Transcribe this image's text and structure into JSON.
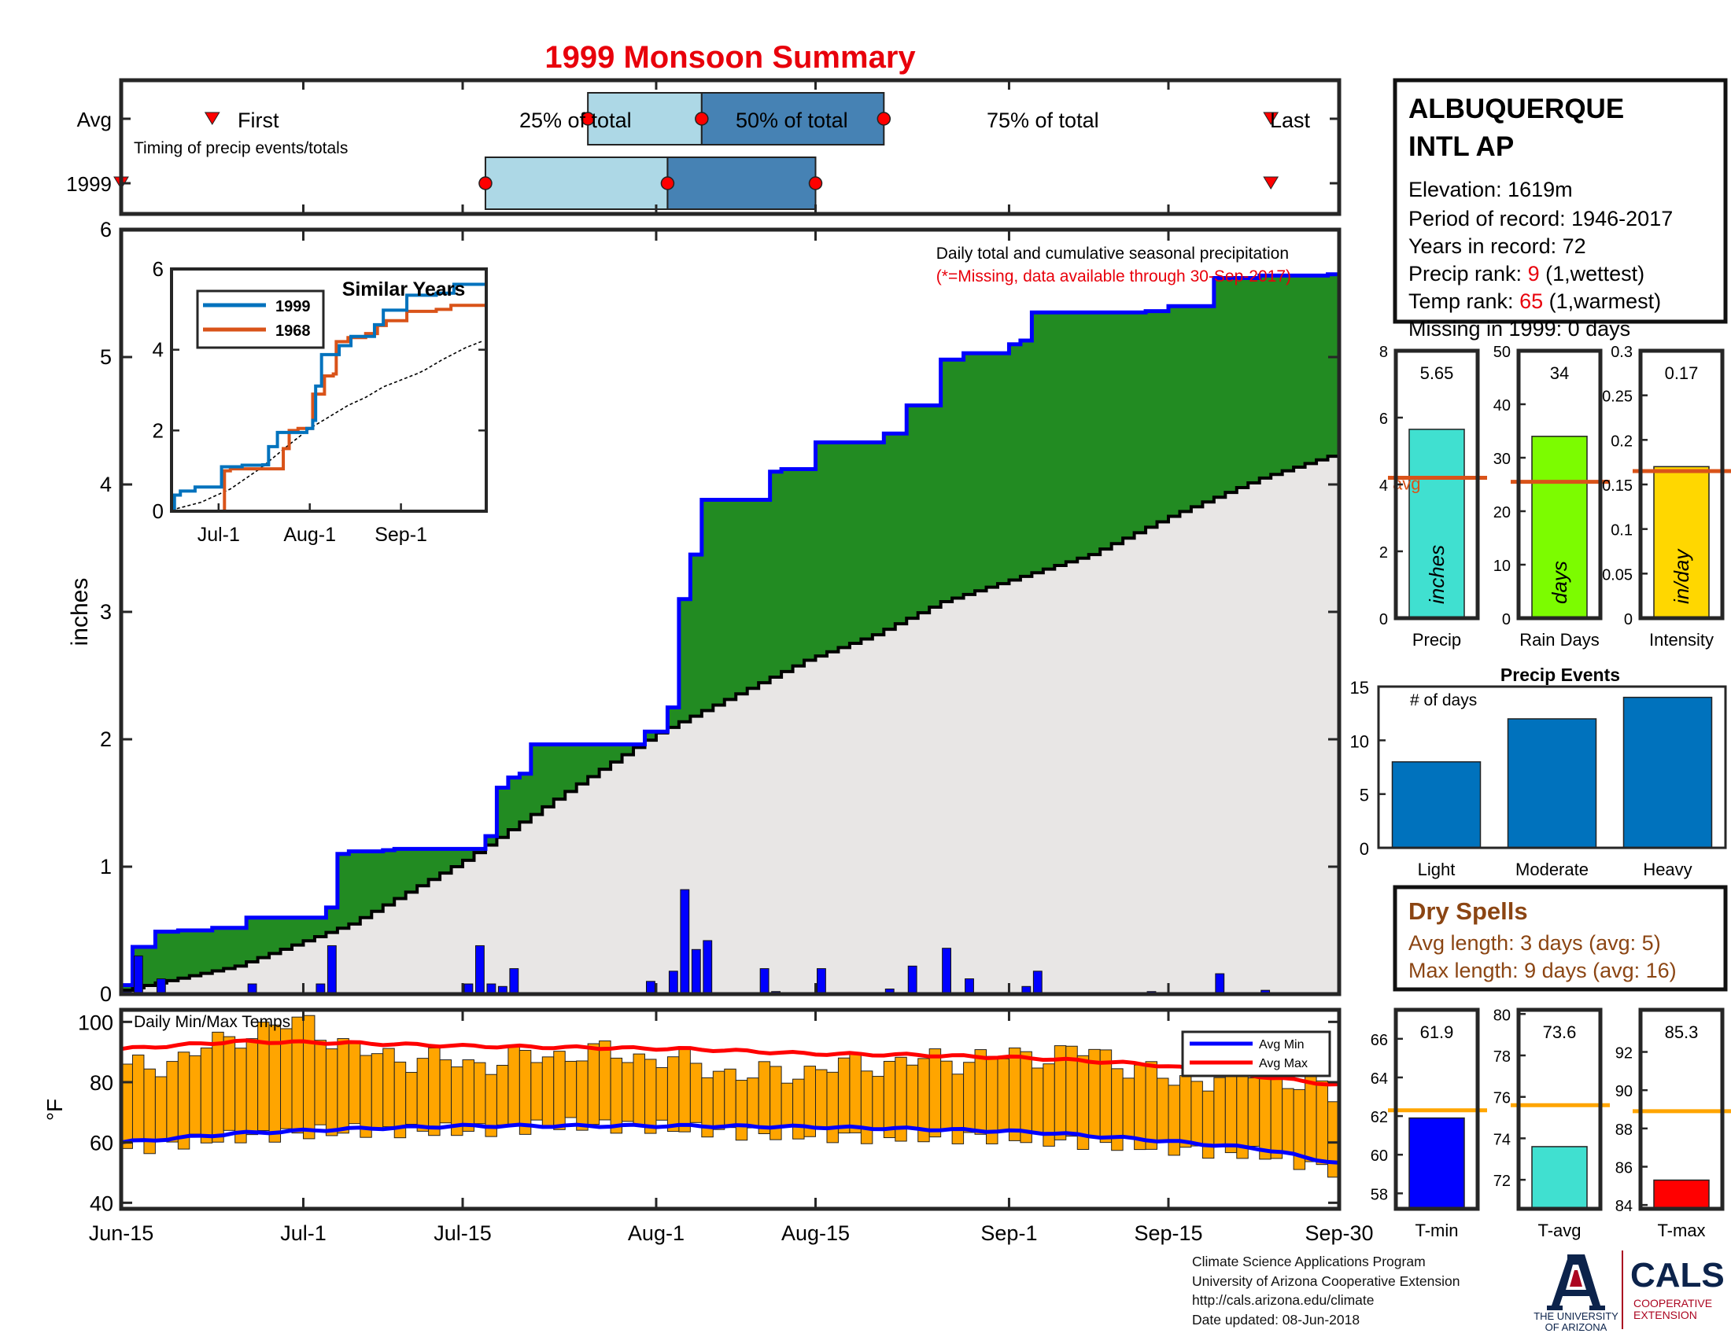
{
  "title": "1999 Monsoon Summary",
  "timing": {
    "labels": {
      "avg": "Avg",
      "year": "1999",
      "first": "First",
      "last": "Last",
      "p25": "25% of total",
      "p50": "50% of total",
      "p75": "75% of total",
      "subtitle": "Timing of precip events/totals"
    },
    "avg": {
      "first": "Jun-23",
      "p25": "Jul-26",
      "p50": "Aug-5",
      "p75": "Aug-21",
      "last": "Sep-24"
    },
    "year": {
      "first": "Jun-15",
      "p25": "Jul-17",
      "p50": "Aug-2",
      "p75": "Aug-15",
      "last": "Sep-24"
    },
    "colors": {
      "light": "#add8e6",
      "dark": "#4682b4",
      "marker": "#ff0000"
    }
  },
  "station": {
    "name_line1": "ALBUQUERQUE",
    "name_line2": "INTL AP",
    "elevation": "Elevation: 1619m",
    "period": "Period of record: 1946-2017",
    "years": "Years in record: 72",
    "precip_rank_label": "Precip rank: ",
    "precip_rank_value": "9",
    "precip_rank_note": " (1,wettest)",
    "temp_rank_label": "Temp rank: ",
    "temp_rank_value": "65",
    "temp_rank_note": " (1,warmest)",
    "missing": "Missing in 1999: 0 days"
  },
  "main_notes": {
    "line1": "Daily total and cumulative seasonal precipitation",
    "line2": "(*=Missing, data available through 30-Sep-2017)"
  },
  "footer": {
    "line1": "Climate Science Applications Program",
    "line2": "University of Arizona Cooperative Extension",
    "line3": "http://cals.arizona.edu/climate",
    "line4": " Date updated: 08-Jun-2018"
  },
  "logos": {
    "ua_letter": "A",
    "ua_line1": "THE UNIVERSITY",
    "ua_line2": "OF ARIZONA",
    "cals": "CALS",
    "cals_line1": "COOPERATIVE",
    "cals_line2": "EXTENSION"
  },
  "dry_spells": {
    "title": "Dry Spells",
    "avg_length": "Avg length: 3 days (avg: 5)",
    "max_length": "Max length: 9 days (avg: 16)",
    "color": "#8b4513"
  },
  "chart_data": [
    {
      "id": "cumulative_precip",
      "type": "area",
      "ylabel": "inches",
      "ylim": [
        0,
        6
      ],
      "yticks": [
        0,
        1,
        2,
        3,
        4,
        5,
        6
      ],
      "x_start": "Jun-15",
      "x_end": "Sep-30",
      "days": 108,
      "xtick_labels": [
        "Jun-15",
        "Jul-1",
        "Jul-15",
        "Aug-1",
        "Aug-15",
        "Sep-1",
        "Sep-15",
        "Sep-30"
      ],
      "xtick_days": [
        0,
        16,
        30,
        47,
        61,
        78,
        92,
        107
      ],
      "series": [
        {
          "name": "1999 cumulative",
          "color": "#0000ff",
          "fill": "#228b22",
          "steps": [
            [
              0,
              0.07
            ],
            [
              1,
              0.37
            ],
            [
              3,
              0.49
            ],
            [
              5,
              0.5
            ],
            [
              8,
              0.52
            ],
            [
              11,
              0.6
            ],
            [
              17,
              0.6
            ],
            [
              18,
              0.68
            ],
            [
              19,
              1.1
            ],
            [
              20,
              1.12
            ],
            [
              23,
              1.13
            ],
            [
              24,
              1.14
            ],
            [
              31,
              1.14
            ],
            [
              32,
              1.24
            ],
            [
              33,
              1.62
            ],
            [
              34,
              1.7
            ],
            [
              35,
              1.73
            ],
            [
              36,
              1.96
            ],
            [
              46,
              2.06
            ],
            [
              48,
              2.25
            ],
            [
              49,
              3.1
            ],
            [
              50,
              3.45
            ],
            [
              51,
              3.88
            ],
            [
              56,
              3.88
            ],
            [
              57,
              4.1
            ],
            [
              58,
              4.12
            ],
            [
              61,
              4.33
            ],
            [
              67,
              4.4
            ],
            [
              69,
              4.62
            ],
            [
              72,
              4.98
            ],
            [
              74,
              5.03
            ],
            [
              78,
              5.1
            ],
            [
              79,
              5.13
            ],
            [
              80,
              5.35
            ],
            [
              90,
              5.36
            ],
            [
              92,
              5.4
            ],
            [
              96,
              5.62
            ],
            [
              100,
              5.64
            ],
            [
              106,
              5.65
            ]
          ]
        },
        {
          "name": "Average cumulative",
          "color": "#000000",
          "fill": "#e8e6e5",
          "x": [
            0,
            10,
            20,
            30,
            40,
            47,
            55,
            60,
            66,
            72,
            78,
            85,
            92,
            100,
            107
          ],
          "values": [
            0.03,
            0.22,
            0.55,
            1.05,
            1.65,
            2.05,
            2.4,
            2.62,
            2.82,
            3.08,
            3.25,
            3.45,
            3.75,
            4.05,
            4.25
          ]
        }
      ],
      "daily_bars": {
        "color": "#0000ff",
        "day": [
          0,
          1,
          3,
          11,
          17,
          18,
          30,
          31,
          32,
          33,
          34,
          46,
          48,
          49,
          50,
          51,
          56,
          57,
          61,
          67,
          69,
          72,
          74,
          79,
          80,
          90,
          96,
          100
        ],
        "values": [
          0.02,
          0.3,
          0.12,
          0.08,
          0.08,
          0.38,
          0.08,
          0.38,
          0.08,
          0.06,
          0.2,
          0.1,
          0.18,
          0.82,
          0.35,
          0.42,
          0.2,
          0.02,
          0.2,
          0.04,
          0.22,
          0.36,
          0.12,
          0.06,
          0.18,
          0.02,
          0.16,
          0.03
        ]
      }
    },
    {
      "id": "similar_years",
      "type": "line",
      "title": "Similar Years",
      "ylim": [
        0,
        6
      ],
      "yticks": [
        0,
        2,
        4,
        6
      ],
      "xtick_labels": [
        "Jul-1",
        "Aug-1",
        "Sep-1"
      ],
      "xtick_days": [
        16,
        47,
        78
      ],
      "series": [
        {
          "name": "1999",
          "color": "#0072bd",
          "steps": [
            [
              0,
              0.0
            ],
            [
              1,
              0.4
            ],
            [
              3,
              0.5
            ],
            [
              8,
              0.6
            ],
            [
              17,
              1.1
            ],
            [
              24,
              1.14
            ],
            [
              31,
              1.15
            ],
            [
              33,
              1.6
            ],
            [
              36,
              1.95
            ],
            [
              46,
              2.05
            ],
            [
              48,
              2.25
            ],
            [
              49,
              3.1
            ],
            [
              51,
              3.88
            ],
            [
              57,
              4.1
            ],
            [
              61,
              4.33
            ],
            [
              69,
              4.62
            ],
            [
              72,
              4.98
            ],
            [
              80,
              5.35
            ],
            [
              90,
              5.4
            ],
            [
              96,
              5.62
            ],
            [
              107,
              5.65
            ]
          ]
        },
        {
          "name": "1968",
          "color": "#d95319",
          "steps": [
            [
              0,
              0.0
            ],
            [
              17,
              0.0
            ],
            [
              18,
              1.0
            ],
            [
              20,
              1.05
            ],
            [
              37,
              1.05
            ],
            [
              38,
              1.55
            ],
            [
              40,
              2.0
            ],
            [
              43,
              2.05
            ],
            [
              47,
              2.05
            ],
            [
              48,
              2.9
            ],
            [
              52,
              3.35
            ],
            [
              55,
              3.4
            ],
            [
              56,
              4.2
            ],
            [
              60,
              4.3
            ],
            [
              66,
              4.4
            ],
            [
              70,
              4.6
            ],
            [
              73,
              4.72
            ],
            [
              80,
              4.95
            ],
            [
              90,
              5.0
            ],
            [
              95,
              5.1
            ],
            [
              107,
              5.12
            ]
          ]
        },
        {
          "name": "Average",
          "color": "#000000",
          "x": [
            0,
            10,
            20,
            30,
            40,
            47,
            55,
            60,
            66,
            72,
            78,
            85,
            92,
            100,
            107
          ],
          "values": [
            0.03,
            0.22,
            0.55,
            1.05,
            1.65,
            2.05,
            2.4,
            2.62,
            2.82,
            3.08,
            3.25,
            3.45,
            3.75,
            4.05,
            4.25
          ]
        }
      ]
    },
    {
      "id": "daily_temps",
      "type": "bar",
      "title": "Daily Min/Max Temps",
      "ylabel": "°F",
      "ylim": [
        38,
        104
      ],
      "yticks": [
        40,
        60,
        80,
        100
      ],
      "bar_color": "#ffa500",
      "x_start": "Jun-15",
      "days": 108,
      "tmin_anchors": {
        "x": [
          0,
          10,
          20,
          30,
          40,
          47,
          55,
          65,
          75,
          85,
          92,
          100,
          107
        ],
        "values": [
          58,
          62,
          64,
          64,
          66,
          65,
          63,
          62,
          62,
          60,
          58,
          56,
          50
        ]
      },
      "tmax_anchors": {
        "x": [
          0,
          5,
          10,
          16,
          20,
          30,
          40,
          47,
          55,
          65,
          75,
          85,
          92,
          100,
          107
        ],
        "values": [
          84,
          88,
          96,
          100,
          90,
          86,
          90,
          88,
          82,
          86,
          88,
          90,
          80,
          84,
          74
        ]
      },
      "series": [
        {
          "name": "Avg Min",
          "color": "#0000ff",
          "x": [
            0,
            10,
            20,
            30,
            40,
            50,
            60,
            70,
            80,
            90,
            100,
            107
          ],
          "values": [
            60,
            63,
            64.5,
            65.5,
            65.5,
            65.5,
            65.2,
            64.5,
            63.5,
            61,
            58,
            53
          ]
        },
        {
          "name": "Avg Max",
          "color": "#ff0000",
          "x": [
            0,
            10,
            20,
            30,
            40,
            50,
            60,
            70,
            80,
            90,
            100,
            107
          ],
          "values": [
            91,
            93.5,
            93,
            92,
            91.5,
            91,
            89.5,
            89,
            88,
            86,
            82,
            79
          ]
        }
      ]
    },
    {
      "id": "precip_stats",
      "type": "bar",
      "panels": [
        {
          "label": "Precip",
          "value": 5.65,
          "value_text": "5.65",
          "avg": 4.2,
          "avg_label": "avg",
          "unit": "inches",
          "color": "#40e0d0",
          "ylim": [
            0,
            8
          ],
          "yticks": [
            0,
            2,
            4,
            6,
            8
          ]
        },
        {
          "label": "Rain Days",
          "value": 34,
          "value_text": "34",
          "avg": 25.5,
          "unit": "days",
          "color": "#7cfc00",
          "ylim": [
            0,
            50
          ],
          "yticks": [
            0,
            10,
            20,
            30,
            40,
            50
          ]
        },
        {
          "label": "Intensity",
          "value": 0.17,
          "value_text": "0.17",
          "avg": 0.165,
          "unit": "in/day",
          "color": "#ffd700",
          "ylim": [
            0,
            0.3
          ],
          "yticks": [
            0,
            0.05,
            0.1,
            0.15,
            0.2,
            0.25,
            0.3
          ],
          "ytick_labels": [
            "0",
            "0.05",
            "0.1",
            "0.15",
            "0.2",
            "0.25",
            "0.3"
          ]
        }
      ],
      "avg_line_color": "#d95319"
    },
    {
      "id": "precip_events",
      "type": "bar",
      "title": "Precip Events",
      "annotation": "# of days",
      "categories": [
        "Light",
        "Moderate",
        "Heavy"
      ],
      "values": [
        8,
        12,
        14
      ],
      "ylim": [
        0,
        15
      ],
      "yticks": [
        0,
        5,
        10,
        15
      ],
      "color": "#0072bd"
    },
    {
      "id": "temp_stats",
      "type": "bar",
      "panels": [
        {
          "label": "T-min",
          "value": 61.9,
          "value_text": "61.9",
          "avg": 62.3,
          "color": "#0000ff",
          "ylim": [
            57.2,
            67.5
          ],
          "yticks": [
            58,
            60,
            62,
            64,
            66
          ]
        },
        {
          "label": "T-avg",
          "value": 73.6,
          "value_text": "73.6",
          "avg": 75.6,
          "color": "#40e0d0",
          "ylim": [
            70.6,
            80.2
          ],
          "yticks": [
            72,
            74,
            76,
            78,
            80
          ]
        },
        {
          "label": "T-max",
          "value": 85.3,
          "value_text": "85.3",
          "avg": 88.9,
          "color": "#ff0000",
          "ylim": [
            83.8,
            94.2
          ],
          "yticks": [
            84,
            86,
            88,
            90,
            92
          ]
        }
      ],
      "avg_line_color": "#ffa500"
    }
  ]
}
